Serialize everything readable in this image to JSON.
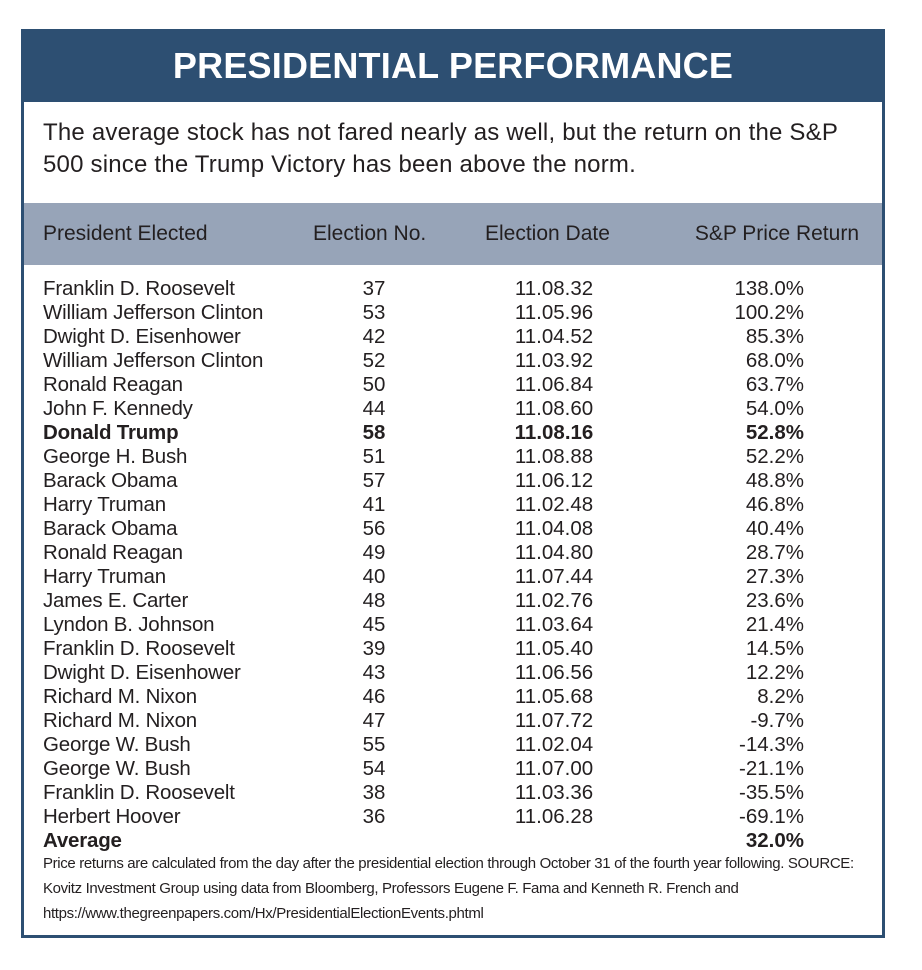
{
  "title": "PRESIDENTIAL PERFORMANCE",
  "subtitle": "The average stock has not fared nearly as well, but the return on the S&P 500 since the Trump Victory has been above the norm.",
  "colors": {
    "title_band": "#2d4f72",
    "header_band": "#97a4b8"
  },
  "table": {
    "headers": [
      "President Elected",
      "Election No.",
      "Election Date",
      "S&P Price Return"
    ],
    "rows": [
      {
        "president": "Franklin D. Roosevelt",
        "no": "37",
        "date": "11.08.32",
        "ret": "138.0%"
      },
      {
        "president": "William Jefferson Clinton",
        "no": "53",
        "date": "11.05.96",
        "ret": "100.2%"
      },
      {
        "president": "Dwight D. Eisenhower",
        "no": "42",
        "date": "11.04.52",
        "ret": "85.3%"
      },
      {
        "president": "William Jefferson Clinton",
        "no": "52",
        "date": "11.03.92",
        "ret": "68.0%"
      },
      {
        "president": "Ronald Reagan",
        "no": "50",
        "date": "11.06.84",
        "ret": "63.7%"
      },
      {
        "president": "John F. Kennedy",
        "no": "44",
        "date": "11.08.60",
        "ret": "54.0%"
      },
      {
        "president": "Donald Trump",
        "no": "58",
        "date": "11.08.16",
        "ret": "52.8%",
        "bold": true
      },
      {
        "president": "George H. Bush",
        "no": "51",
        "date": "11.08.88",
        "ret": "52.2%"
      },
      {
        "president": "Barack Obama",
        "no": "57",
        "date": "11.06.12",
        "ret": "48.8%"
      },
      {
        "president": "Harry Truman",
        "no": "41",
        "date": "11.02.48",
        "ret": "46.8%"
      },
      {
        "president": "Barack Obama",
        "no": "56",
        "date": "11.04.08",
        "ret": "40.4%"
      },
      {
        "president": "Ronald Reagan",
        "no": "49",
        "date": "11.04.80",
        "ret": "28.7%"
      },
      {
        "president": "Harry Truman",
        "no": "40",
        "date": "11.07.44",
        "ret": "27.3%"
      },
      {
        "president": "James E. Carter",
        "no": "48",
        "date": "11.02.76",
        "ret": "23.6%"
      },
      {
        "president": "Lyndon B. Johnson",
        "no": "45",
        "date": "11.03.64",
        "ret": "21.4%"
      },
      {
        "president": "Franklin D. Roosevelt",
        "no": "39",
        "date": "11.05.40",
        "ret": "14.5%"
      },
      {
        "president": "Dwight D. Eisenhower",
        "no": "43",
        "date": "11.06.56",
        "ret": "12.2%"
      },
      {
        "president": "Richard M. Nixon",
        "no": "46",
        "date": "11.05.68",
        "ret": "8.2%"
      },
      {
        "president": "Richard M. Nixon",
        "no": "47",
        "date": "11.07.72",
        "ret": "-9.7%"
      },
      {
        "president": "George W. Bush",
        "no": "55",
        "date": "11.02.04",
        "ret": "-14.3%"
      },
      {
        "president": "George W. Bush",
        "no": "54",
        "date": "11.07.00",
        "ret": "-21.1%"
      },
      {
        "president": "Franklin D. Roosevelt",
        "no": "38",
        "date": "11.03.36",
        "ret": "-35.5%"
      },
      {
        "president": "Herbert Hoover",
        "no": "36",
        "date": "11.06.28",
        "ret": "-69.1%"
      }
    ],
    "average": {
      "label": "Average",
      "ret": "32.0%"
    }
  },
  "footnote": "Price returns are calculated from the day after the presidential election through October 31 of the fourth year following. SOURCE: Kovitz Investment Group using data from Bloomberg, Professors Eugene F. Fama and Kenneth R. French and https://www.thegreenpapers.com/Hx/PresidentialElectionEvents.phtml"
}
